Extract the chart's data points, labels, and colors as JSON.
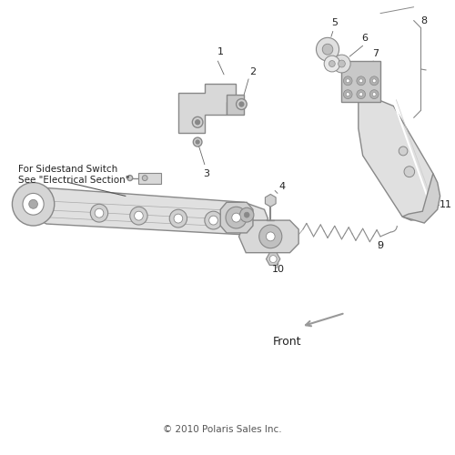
{
  "bg_color": "#ffffff",
  "line_color": "#888888",
  "dark_color": "#555555",
  "text_color": "#222222",
  "copyright": "© 2010 Polaris Sales Inc.",
  "note_line1": "For Sidestand Switch",
  "note_line2": "See \"Electrical Section\"",
  "front_label": "Front"
}
